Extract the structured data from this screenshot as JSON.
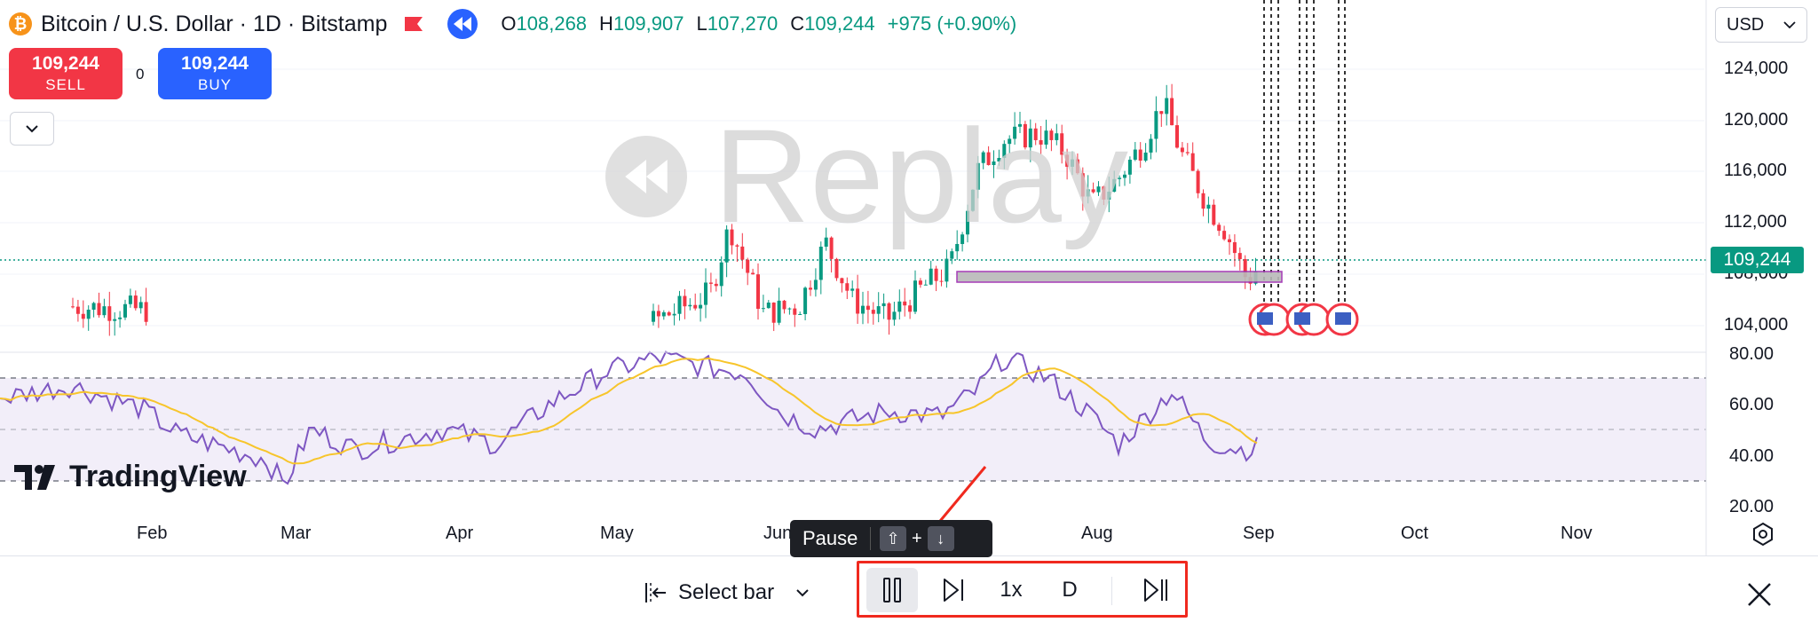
{
  "header": {
    "symbol_icon": "bitcoin-icon",
    "title": "Bitcoin / U.S. Dollar · 1D · Bitstamp",
    "ohlc": [
      {
        "key": "O",
        "value": "108,268"
      },
      {
        "key": "H",
        "value": "109,907"
      },
      {
        "key": "L",
        "value": "107,270"
      },
      {
        "key": "C",
        "value": "109,244"
      }
    ],
    "change": "+975 (+0.90%)"
  },
  "trade": {
    "sell_price": "109,244",
    "sell_label": "SELL",
    "buy_price": "109,244",
    "buy_label": "BUY",
    "spread": "0"
  },
  "currency": {
    "value": "USD"
  },
  "last_price": "109,244",
  "watermark": "Replay",
  "logo": "TradingView",
  "price_axis": [
    "124,000",
    "120,000",
    "116,000",
    "112,000",
    "108,000",
    "104,000"
  ],
  "rsi_axis": [
    "80.00",
    "60.00",
    "40.00",
    "20.00"
  ],
  "time_axis": [
    "Feb",
    "Mar",
    "Apr",
    "May",
    "Jun",
    "Aug",
    "Sep",
    "Oct",
    "Nov"
  ],
  "replay_bar": {
    "select_bar_label": "Select bar",
    "speed": "1x",
    "interval": "D",
    "tooltip": {
      "label": "Pause",
      "key1": "⇧",
      "plus": "+",
      "key2": "↓"
    }
  },
  "colors": {
    "up": "#089981",
    "down": "#f23645",
    "rsi": "#7e57c2",
    "rsi_ma": "#f7c52b",
    "accent": "#2962ff",
    "highlight": "#f0291e"
  }
}
